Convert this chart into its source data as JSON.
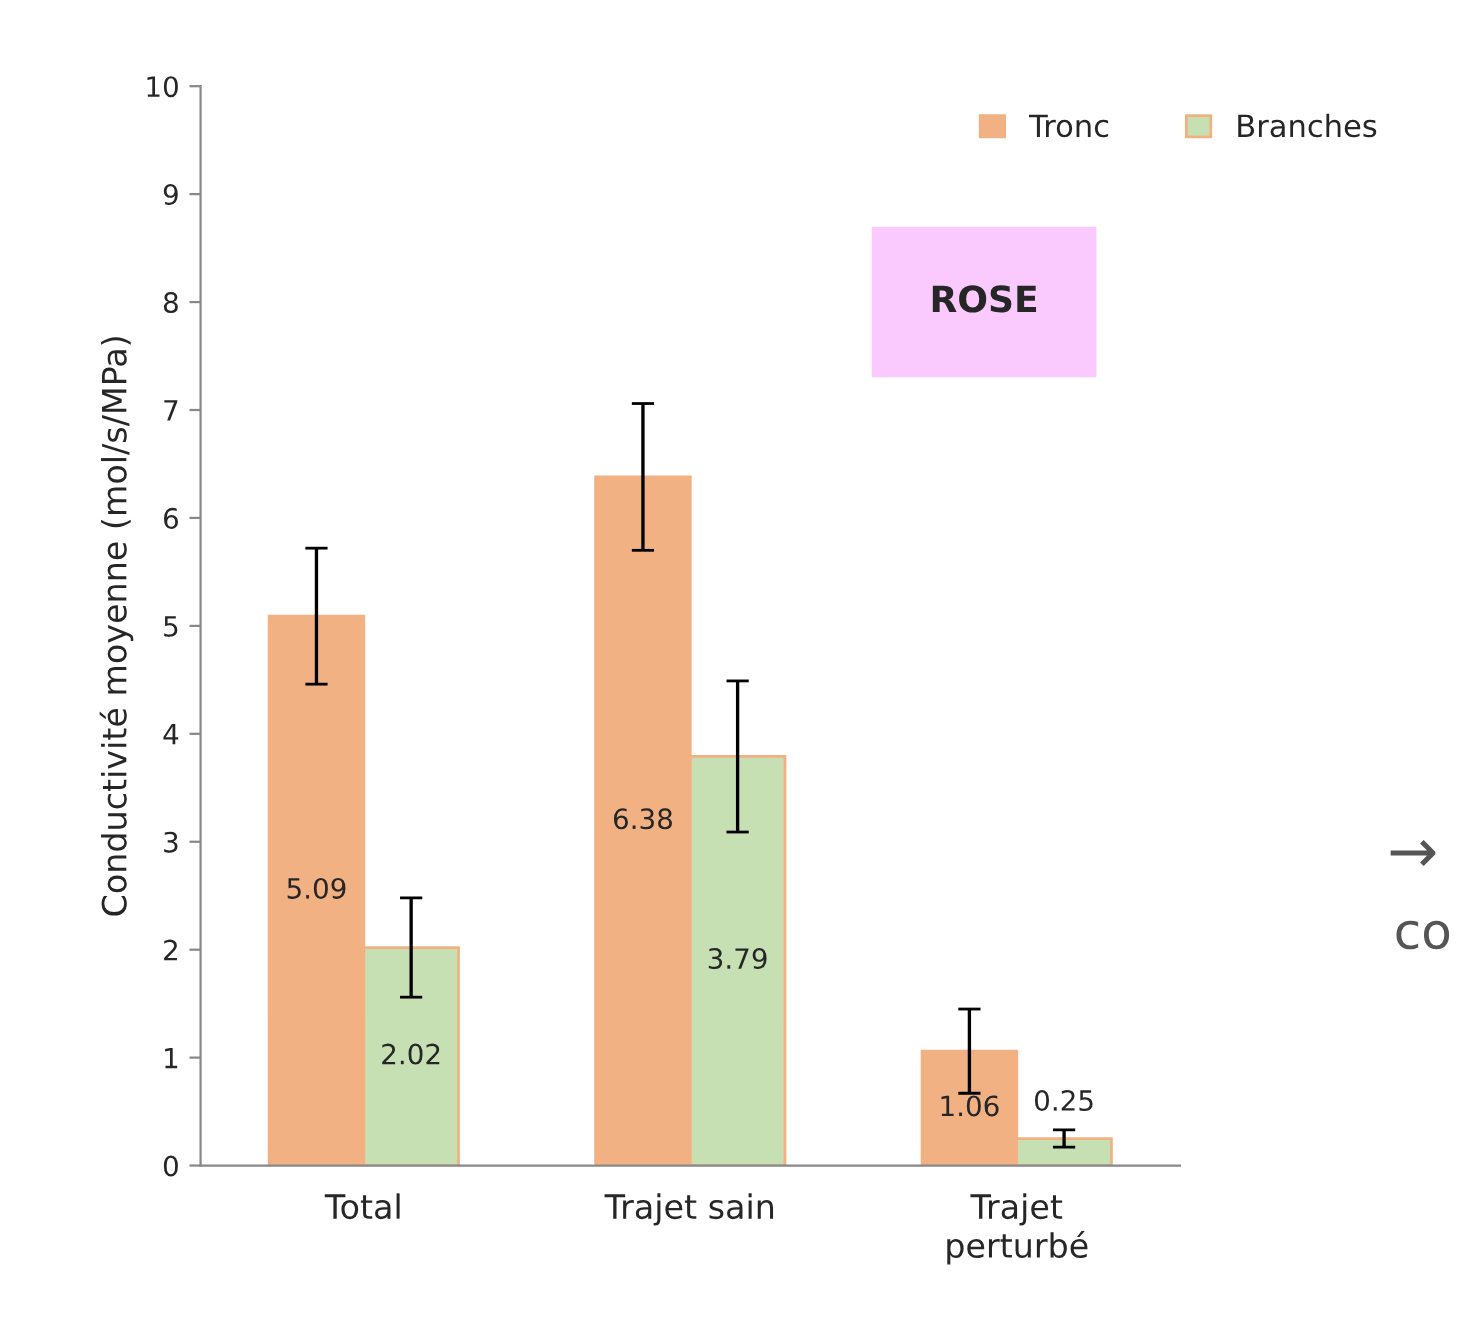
{
  "chart_data": {
    "type": "bar",
    "ylabel": "Conductivité moyenne (mol/s/MPa)",
    "categories": [
      "Total",
      "Trajet sain",
      "Trajet\nperturbé"
    ],
    "series": [
      {
        "name": "Tronc",
        "color": "#f2b183",
        "values": [
          5.09,
          6.38,
          1.06
        ],
        "errors": [
          0.63,
          0.68,
          0.39
        ]
      },
      {
        "name": "Branches",
        "color": "#c6e0b4",
        "values": [
          2.02,
          3.79,
          0.25
        ],
        "errors": [
          0.46,
          0.7,
          0.08
        ]
      }
    ],
    "ylim": [
      0,
      10
    ],
    "yticks": [
      0,
      1,
      2,
      3,
      4,
      5,
      6,
      7,
      8,
      9,
      10
    ],
    "data_labels": true,
    "grid": false,
    "legend": "top right",
    "annotations": [
      "ROSE",
      "→",
      "co"
    ]
  }
}
